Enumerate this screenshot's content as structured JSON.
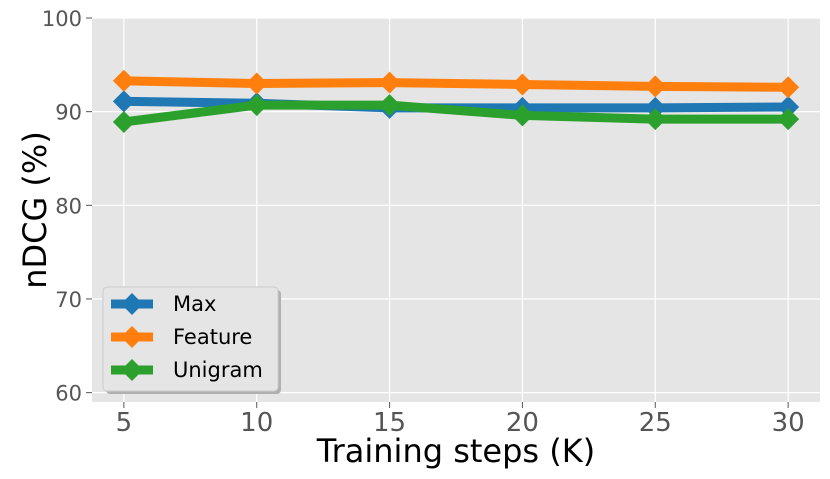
{
  "chart_data": {
    "type": "line",
    "title": "",
    "xlabel": "Training steps (K)",
    "ylabel": "nDCG (%)",
    "x": [
      5,
      10,
      15,
      20,
      25,
      30
    ],
    "xticks": [
      "5",
      "10",
      "15",
      "20",
      "25",
      "30"
    ],
    "yticks": [
      "60",
      "70",
      "80",
      "90",
      "100"
    ],
    "xlim": [
      3.8,
      31.2
    ],
    "ylim": [
      59,
      100
    ],
    "grid": true,
    "legend_position": "lower-left",
    "marker": "diamond",
    "series": [
      {
        "name": "Max",
        "color": "#1f77b4",
        "values": [
          91.1,
          90.9,
          90.4,
          90.4,
          90.4,
          90.5
        ]
      },
      {
        "name": "Feature",
        "color": "#ff7f0e",
        "values": [
          93.3,
          93.0,
          93.1,
          92.9,
          92.7,
          92.6
        ]
      },
      {
        "name": "Unigram",
        "color": "#2ca02c",
        "values": [
          88.9,
          90.7,
          90.7,
          89.6,
          89.2,
          89.2
        ]
      }
    ]
  }
}
